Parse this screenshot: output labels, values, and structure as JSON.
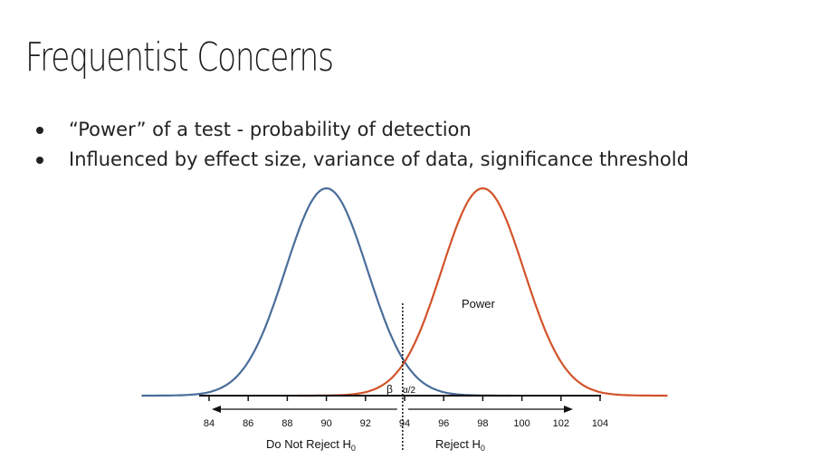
{
  "slide": {
    "title": "Frequentist Concerns",
    "bullets": [
      "“Power” of a test - probability of detection",
      "Influenced by effect size, variance of data, significance threshold"
    ]
  },
  "chart_data": {
    "type": "line",
    "x_ticks": [
      84,
      86,
      88,
      90,
      92,
      94,
      96,
      98,
      100,
      102,
      104
    ],
    "xlim": [
      84,
      104
    ],
    "series": [
      {
        "mean": 90,
        "sd": 2.1,
        "color": "#4a6d9a"
      },
      {
        "mean": 98,
        "sd": 2.1,
        "color": "#d2532a"
      }
    ],
    "critical_value": 93.9,
    "annotations": {
      "power": "Power",
      "beta": "β",
      "alpha_half": "α/2",
      "do_not_reject": "Do Not Reject H",
      "reject": "Reject H",
      "h_subscript": "0"
    }
  }
}
